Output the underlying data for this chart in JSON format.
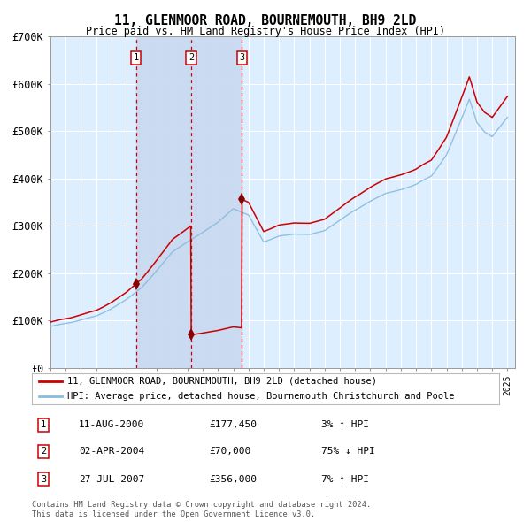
{
  "title": "11, GLENMOOR ROAD, BOURNEMOUTH, BH9 2LD",
  "subtitle": "Price paid vs. HM Land Registry's House Price Index (HPI)",
  "legend_line1": "11, GLENMOOR ROAD, BOURNEMOUTH, BH9 2LD (detached house)",
  "legend_line2": "HPI: Average price, detached house, Bournemouth Christchurch and Poole",
  "footnote1": "Contains HM Land Registry data © Crown copyright and database right 2024.",
  "footnote2": "This data is licensed under the Open Government Licence v3.0.",
  "transactions": [
    {
      "num": 1,
      "date": "11-AUG-2000",
      "price": 177450,
      "hpi_pct": "3%",
      "direction": "↑"
    },
    {
      "num": 2,
      "date": "02-APR-2004",
      "price": 70000,
      "hpi_pct": "75%",
      "direction": "↓"
    },
    {
      "num": 3,
      "date": "27-JUL-2007",
      "price": 356000,
      "hpi_pct": "7%",
      "direction": "↑"
    }
  ],
  "transaction_dates_decimal": [
    2000.61,
    2004.25,
    2007.57
  ],
  "transaction_prices": [
    177450,
    70000,
    356000
  ],
  "ylim": [
    0,
    700000
  ],
  "yticks": [
    0,
    100000,
    200000,
    300000,
    400000,
    500000,
    600000,
    700000
  ],
  "ytick_labels": [
    "£0",
    "£100K",
    "£200K",
    "£300K",
    "£400K",
    "£500K",
    "£600K",
    "£700K"
  ],
  "plot_bg_color": "#ddeeff",
  "shade_color": "#c8d8f0",
  "red_line_color": "#cc0000",
  "blue_line_color": "#88bbdd",
  "marker_color": "#880000",
  "box_edge_color": "#cc0000",
  "grid_color": "#ffffff",
  "axis_color": "#999999",
  "hpi_keypoints_x": [
    1995.0,
    1996.0,
    1997.0,
    1998.0,
    1999.0,
    2000.0,
    2001.0,
    2002.0,
    2003.0,
    2004.0,
    2005.0,
    2006.0,
    2007.0,
    2008.0,
    2009.0,
    2010.0,
    2011.0,
    2012.0,
    2013.0,
    2014.0,
    2015.0,
    2016.0,
    2017.0,
    2018.0,
    2019.0,
    2020.0,
    2021.0,
    2022.0,
    2022.5,
    2023.0,
    2023.5,
    2024.0,
    2024.5,
    2025.0
  ],
  "hpi_keypoints_y": [
    88000,
    95000,
    103000,
    112000,
    128000,
    148000,
    175000,
    213000,
    252000,
    275000,
    295000,
    315000,
    342000,
    330000,
    272000,
    285000,
    290000,
    288000,
    295000,
    318000,
    340000,
    360000,
    375000,
    382000,
    393000,
    410000,
    455000,
    530000,
    570000,
    520000,
    500000,
    490000,
    510000,
    530000
  ]
}
